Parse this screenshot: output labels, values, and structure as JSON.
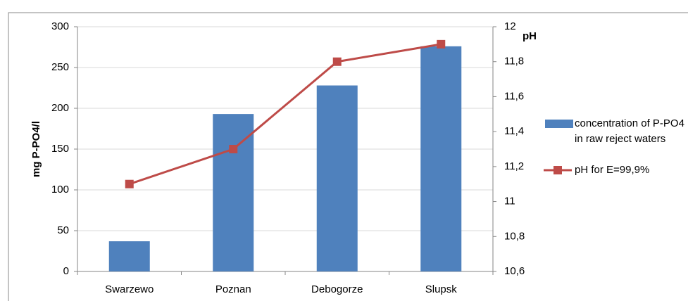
{
  "chart_data": {
    "type": "bar",
    "categories": [
      "Swarzewo",
      "Poznan",
      "Debogorze",
      "Slupsk"
    ],
    "series": [
      {
        "name": "concentration of P-PO4 in raw reject waters",
        "color": "#4f81bd",
        "values": [
          37,
          193,
          228,
          276
        ]
      },
      {
        "name": "pH for E=99,9%",
        "color": "#be4b48",
        "type": "line",
        "axis": "y2",
        "values": [
          11.1,
          11.3,
          11.8,
          11.9
        ]
      }
    ],
    "y_label": "mg P-PO4/l",
    "y2_label": "pH",
    "ylim": [
      0,
      300
    ],
    "yticks": [
      0,
      50,
      100,
      150,
      200,
      250,
      300
    ],
    "y2lim": [
      10.6,
      12
    ],
    "y2ticks": [
      {
        "value": 10.6,
        "label": "10,6"
      },
      {
        "value": 10.8,
        "label": "10,8"
      },
      11,
      {
        "value": 11.2,
        "label": "11,2"
      },
      {
        "value": 11.4,
        "label": "11,4"
      },
      {
        "value": 11.6,
        "label": "11,6"
      },
      {
        "value": 11.8,
        "label": "11,8"
      },
      12
    ],
    "grid": true
  }
}
